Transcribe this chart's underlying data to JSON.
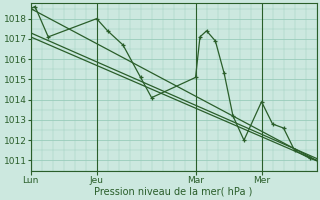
{
  "background_color": "#cce8df",
  "grid_color": "#99ccbb",
  "line_color": "#2a5e2a",
  "xlabel": "Pression niveau de la mer( hPa )",
  "ylim": [
    1010.5,
    1018.75
  ],
  "yticks": [
    1011,
    1012,
    1013,
    1014,
    1015,
    1016,
    1017,
    1018
  ],
  "day_positions": [
    0,
    30,
    75,
    105
  ],
  "day_labels": [
    "Lun",
    "Jeu",
    "Mar",
    "Mer"
  ],
  "xmin": 0,
  "xmax": 130,
  "vline_positions": [
    0,
    30,
    75,
    105
  ],
  "trend1": {
    "x": [
      0,
      130
    ],
    "y": [
      1018.5,
      1011.0
    ]
  },
  "trend2": {
    "x": [
      0,
      130
    ],
    "y": [
      1017.1,
      1011.0
    ]
  },
  "trend3": {
    "x": [
      0,
      130
    ],
    "y": [
      1017.3,
      1011.1
    ]
  },
  "series_x": [
    0,
    2,
    8,
    30,
    35,
    42,
    50,
    55,
    75,
    77,
    80,
    84,
    88,
    92,
    97,
    105,
    110,
    115,
    120,
    127,
    130
  ],
  "series_y": [
    1018.5,
    1018.6,
    1017.1,
    1018.0,
    1017.4,
    1016.7,
    1015.1,
    1014.1,
    1015.1,
    1017.1,
    1017.4,
    1016.9,
    1015.3,
    1013.2,
    1012.0,
    1013.9,
    1012.8,
    1012.6,
    1011.5,
    1011.1,
    1011.0
  ]
}
